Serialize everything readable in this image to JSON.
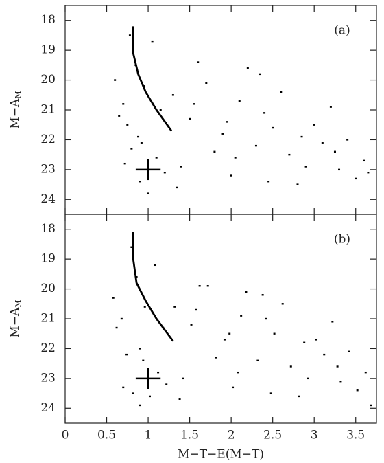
{
  "chart_data": [
    {
      "type": "scatter",
      "label": "(a)",
      "ylabel": "M−A",
      "ylabel_sub": "M",
      "xlim": [
        0,
        3.75
      ],
      "ylim": [
        17.5,
        24.5
      ],
      "y_inverted": true,
      "xticks": [
        0,
        0.5,
        1,
        1.5,
        2,
        2.5,
        3,
        3.5
      ],
      "show_xtick_labels": false,
      "yticks": [
        18,
        19,
        20,
        21,
        22,
        23,
        24
      ],
      "color": "#000000",
      "points": {
        "x": [
          0.7,
          0.75,
          0.8,
          0.9,
          1.0,
          1.1,
          0.65,
          0.85,
          0.95,
          1.2,
          0.6,
          0.72,
          0.88,
          1.05,
          1.3,
          1.5,
          1.7,
          1.9,
          2.1,
          2.3,
          2.5,
          2.7,
          2.9,
          3.1,
          3.3,
          3.5,
          3.6,
          2.2,
          2.6,
          3.0,
          1.4,
          1.6,
          1.8,
          2.0,
          2.4,
          2.8,
          3.2,
          3.4,
          0.78,
          0.92,
          1.15,
          1.35,
          2.05,
          2.45,
          2.85,
          3.25,
          3.65,
          1.55,
          1.95,
          2.35
        ],
        "y": [
          20.8,
          21.5,
          22.3,
          23.4,
          23.8,
          22.6,
          21.2,
          19.5,
          20.2,
          23.1,
          20.0,
          22.8,
          21.9,
          18.7,
          20.5,
          21.3,
          20.1,
          21.8,
          20.7,
          22.2,
          21.6,
          22.5,
          22.9,
          22.1,
          23.0,
          23.3,
          22.7,
          19.6,
          20.4,
          21.5,
          22.9,
          19.4,
          22.4,
          23.2,
          21.1,
          23.5,
          20.9,
          22.0,
          18.5,
          22.1,
          21.0,
          23.6,
          22.6,
          23.4,
          21.9,
          22.4,
          23.1,
          20.8,
          21.4,
          19.8
        ]
      },
      "fiducial": {
        "x": [
          0.82,
          0.82,
          0.88,
          0.97,
          1.1,
          1.28
        ],
        "y": [
          18.2,
          19.1,
          19.8,
          20.4,
          21.0,
          21.7
        ]
      },
      "errorbar": {
        "x": 1.0,
        "y": 23.0,
        "xerr": 0.15,
        "yerr": 0.35
      }
    },
    {
      "type": "scatter",
      "label": "(b)",
      "ylabel": "M−A",
      "ylabel_sub": "M",
      "xlabel": "M−T−E(M−T)",
      "xlim": [
        0,
        3.75
      ],
      "ylim": [
        17.5,
        24.5
      ],
      "y_inverted": true,
      "xticks": [
        0,
        0.5,
        1,
        1.5,
        2,
        2.5,
        3,
        3.5
      ],
      "show_xtick_labels": true,
      "yticks": [
        18,
        19,
        20,
        21,
        22,
        23,
        24
      ],
      "color": "#000000",
      "points": {
        "x": [
          0.68,
          0.74,
          0.82,
          0.9,
          1.02,
          1.12,
          0.62,
          0.86,
          0.96,
          1.22,
          0.58,
          0.7,
          0.9,
          1.08,
          1.32,
          1.52,
          1.72,
          1.92,
          2.12,
          2.32,
          2.52,
          2.72,
          2.92,
          3.12,
          3.32,
          3.52,
          3.62,
          2.18,
          2.62,
          3.02,
          1.42,
          1.62,
          1.82,
          2.02,
          2.42,
          2.82,
          3.22,
          3.42,
          0.8,
          0.94,
          1.18,
          1.38,
          2.08,
          2.48,
          2.88,
          3.28,
          3.68,
          1.58,
          1.98,
          2.38
        ],
        "y": [
          21.0,
          22.2,
          23.5,
          23.9,
          23.6,
          22.8,
          21.3,
          19.6,
          20.6,
          23.2,
          20.3,
          23.3,
          22.0,
          19.2,
          20.6,
          21.2,
          19.9,
          21.7,
          20.9,
          22.4,
          21.5,
          22.6,
          23.0,
          22.2,
          23.1,
          23.4,
          22.8,
          20.1,
          20.5,
          21.7,
          23.0,
          19.9,
          22.3,
          23.3,
          21.0,
          23.6,
          21.1,
          22.1,
          18.6,
          22.4,
          21.3,
          23.7,
          22.8,
          23.5,
          21.8,
          22.6,
          23.9,
          20.7,
          21.5,
          20.2
        ]
      },
      "fiducial": {
        "x": [
          0.82,
          0.82,
          0.86,
          0.97,
          1.1,
          1.3
        ],
        "y": [
          18.1,
          19.0,
          19.8,
          20.4,
          21.0,
          21.75
        ]
      },
      "errorbar": {
        "x": 1.0,
        "y": 23.0,
        "xerr": 0.15,
        "yerr": 0.35
      }
    }
  ]
}
